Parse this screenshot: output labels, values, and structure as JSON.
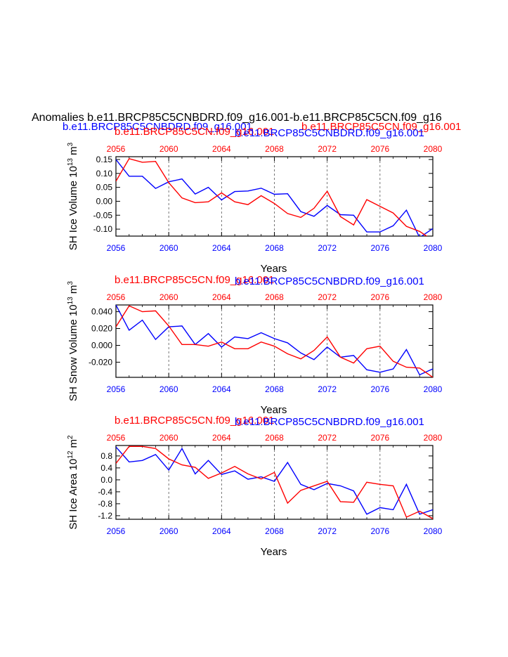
{
  "header": {
    "title": "Anomalies b.e11.BRCP85C5CNBDRD.f09_g16.001-b.e11.BRCP85C5CN.f09_g16",
    "legend_left": "b.e11.BRCP85C5CNBDRD.f09_g16.001",
    "legend_right": "b.e11.BRCP85C5CN.f09_g16.001"
  },
  "colors": {
    "series_a": "#0000ff",
    "series_b": "#ff0000",
    "axis": "#000000",
    "grid": "#555555"
  },
  "chart_data": [
    {
      "type": "line",
      "name": "panel-ice-volume",
      "label_red": "b.e11.BRCP85C5CN.f09_g16.001",
      "label_blue": "b.e11.BRCP85C5CNBDRD.f09_g16.001",
      "xlabel": "Years",
      "ylabel": "SH Ice Volume 10",
      "ylabel_exp": "13",
      "ylabel_unit": " m",
      "ylabel_unit_exp": "3",
      "xlim": [
        2056,
        2080
      ],
      "ylim": [
        -0.125,
        0.16
      ],
      "xticks": [
        2056,
        2060,
        2064,
        2068,
        2072,
        2076,
        2080
      ],
      "yticks": [
        -0.1,
        -0.05,
        0.0,
        0.05,
        0.1,
        0.15
      ],
      "ytick_labels": [
        "-0.10",
        "-0.05",
        "0.00",
        "0.05",
        "0.10",
        "0.15"
      ],
      "grid_x": [
        2060,
        2064,
        2068,
        2072,
        2076
      ],
      "x": [
        2056,
        2057,
        2058,
        2059,
        2060,
        2061,
        2062,
        2063,
        2064,
        2065,
        2066,
        2067,
        2068,
        2069,
        2070,
        2071,
        2072,
        2073,
        2074,
        2075,
        2076,
        2077,
        2078,
        2079,
        2080
      ],
      "series": [
        {
          "name": "b.e11.BRCP85C5CNBDRD.f09_g16.001",
          "color": "#0000ff",
          "values": [
            0.15,
            0.09,
            0.09,
            0.046,
            0.07,
            0.08,
            0.026,
            0.05,
            0.005,
            0.035,
            0.037,
            0.047,
            0.025,
            0.027,
            -0.037,
            -0.054,
            -0.015,
            -0.048,
            -0.05,
            -0.11,
            -0.11,
            -0.088,
            -0.032,
            -0.13,
            -0.098
          ]
        },
        {
          "name": "b.e11.BRCP85C5CN.f09_g16.001",
          "color": "#ff0000",
          "values": [
            0.072,
            0.153,
            0.14,
            0.143,
            0.067,
            0.012,
            -0.005,
            -0.002,
            0.03,
            -0.002,
            -0.012,
            0.02,
            -0.008,
            -0.044,
            -0.058,
            -0.025,
            0.036,
            -0.055,
            -0.085,
            0.006,
            -0.018,
            -0.042,
            -0.09,
            -0.108,
            -0.14
          ]
        }
      ]
    },
    {
      "type": "line",
      "name": "panel-snow-volume",
      "label_red": "b.e11.BRCP85C5CN.f09_g16.001",
      "label_blue": "b.e11.BRCP85C5CNBDRD.f09_g16.001",
      "xlabel": "Years",
      "ylabel": "SH Snow Volume 10",
      "ylabel_exp": "13",
      "ylabel_unit": " m",
      "ylabel_unit_exp": "3",
      "xlim": [
        2056,
        2080
      ],
      "ylim": [
        -0.038,
        0.048
      ],
      "xticks": [
        2056,
        2060,
        2064,
        2068,
        2072,
        2076,
        2080
      ],
      "yticks": [
        -0.02,
        0.0,
        0.02,
        0.04
      ],
      "ytick_labels": [
        "-0.020",
        "0.000",
        "0.020",
        "0.040"
      ],
      "grid_x": [
        2060,
        2064,
        2068,
        2072,
        2076
      ],
      "x": [
        2056,
        2057,
        2058,
        2059,
        2060,
        2061,
        2062,
        2063,
        2064,
        2065,
        2066,
        2067,
        2068,
        2069,
        2070,
        2071,
        2072,
        2073,
        2074,
        2075,
        2076,
        2077,
        2078,
        2079,
        2080
      ],
      "series": [
        {
          "name": "b.e11.BRCP85C5CNBDRD.f09_g16.001",
          "color": "#0000ff",
          "values": [
            0.048,
            0.018,
            0.03,
            0.007,
            0.022,
            0.023,
            0.001,
            0.014,
            -0.002,
            0.01,
            0.008,
            0.015,
            0.008,
            0.003,
            -0.009,
            -0.017,
            -0.002,
            -0.014,
            -0.012,
            -0.029,
            -0.032,
            -0.028,
            -0.005,
            -0.035,
            -0.028
          ]
        },
        {
          "name": "b.e11.BRCP85C5CN.f09_g16.001",
          "color": "#ff0000",
          "values": [
            0.022,
            0.047,
            0.04,
            0.041,
            0.023,
            0.001,
            0.001,
            -0.001,
            0.004,
            -0.004,
            -0.004,
            0.004,
            -0.001,
            -0.01,
            -0.016,
            -0.006,
            0.01,
            -0.014,
            -0.021,
            -0.004,
            -0.001,
            -0.019,
            -0.026,
            -0.027,
            -0.038
          ]
        }
      ]
    },
    {
      "type": "line",
      "name": "panel-ice-area",
      "label_red": "b.e11.BRCP85C5CN.f09_g16.001",
      "label_blue": "b.e11.BRCP85C5CNBDRD.f09_g16.001",
      "xlabel": "Years",
      "ylabel": "SH Ice Area 10",
      "ylabel_exp": "12",
      "ylabel_unit": " m",
      "ylabel_unit_exp": "2",
      "xlim": [
        2056,
        2080
      ],
      "ylim": [
        -1.32,
        1.15
      ],
      "xticks": [
        2056,
        2060,
        2064,
        2068,
        2072,
        2076,
        2080
      ],
      "yticks": [
        -1.2,
        -0.8,
        -0.4,
        0.0,
        0.4,
        0.8
      ],
      "ytick_labels": [
        "-1.2",
        "-0.8",
        "-0.4",
        "0.0",
        "0.4",
        "0.8"
      ],
      "grid_x": [
        2060,
        2064,
        2068,
        2072,
        2076
      ],
      "x": [
        2056,
        2057,
        2058,
        2059,
        2060,
        2061,
        2062,
        2063,
        2064,
        2065,
        2066,
        2067,
        2068,
        2069,
        2070,
        2071,
        2072,
        2073,
        2074,
        2075,
        2076,
        2077,
        2078,
        2079,
        2080
      ],
      "series": [
        {
          "name": "b.e11.BRCP85C5CNBDRD.f09_g16.001",
          "color": "#0000ff",
          "values": [
            1.1,
            0.6,
            0.65,
            0.85,
            0.33,
            1.05,
            0.2,
            0.65,
            0.18,
            0.3,
            0.02,
            0.1,
            -0.05,
            0.58,
            -0.15,
            -0.33,
            -0.12,
            -0.2,
            -0.37,
            -1.15,
            -0.93,
            -1.0,
            -0.15,
            -1.15,
            -1.0
          ]
        },
        {
          "name": "b.e11.BRCP85C5CN.f09_g16.001",
          "color": "#ff0000",
          "values": [
            0.55,
            1.12,
            1.12,
            1.05,
            0.7,
            0.5,
            0.42,
            0.05,
            0.23,
            0.45,
            0.2,
            0.03,
            0.25,
            -0.78,
            -0.35,
            -0.2,
            -0.05,
            -0.73,
            -0.75,
            -0.08,
            -0.15,
            -0.2,
            -1.25,
            -1.05,
            -1.3
          ]
        }
      ]
    }
  ]
}
